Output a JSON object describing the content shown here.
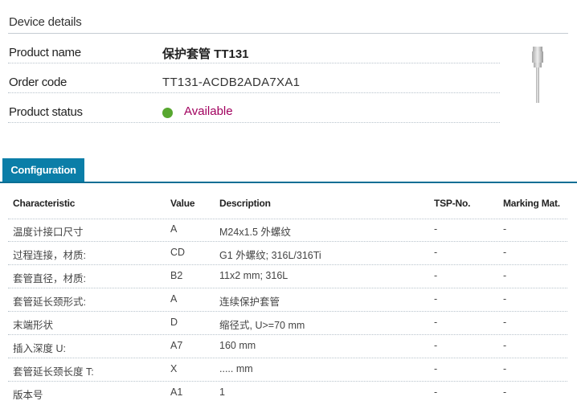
{
  "device_details": {
    "title": "Device details",
    "product_name_label": "Product name",
    "product_name": "保护套管 TT131",
    "order_code_label": "Order code",
    "order_code": "TT131-ACDB2ADA7XA1",
    "product_status_label": "Product status",
    "product_status": "Available",
    "status_color": "#57a72f",
    "status_text_color": "#a1005e"
  },
  "tabs": [
    {
      "label": "Configuration",
      "active": true,
      "color": "#0b7ea8"
    }
  ],
  "table": {
    "headers": [
      "Characteristic",
      "Value",
      "Description",
      "TSP-No.",
      "Marking Mat."
    ],
    "rows": [
      [
        "温度计接口尺寸",
        "A",
        "M24x1.5 外螺纹",
        "-",
        "-"
      ],
      [
        "过程连接，材质:",
        "CD",
        "G1 外螺纹; 316L/316Ti",
        "-",
        "-"
      ],
      [
        "套管直径，材质:",
        "B2",
        "11x2 mm; 316L",
        "-",
        "-"
      ],
      [
        "套管延长颈形式:",
        "A",
        "连续保护套管",
        "-",
        "-"
      ],
      [
        "末端形状",
        "D",
        "缩径式, U>=70 mm",
        "-",
        "-"
      ],
      [
        "插入深度 U:",
        "A7",
        "160 mm",
        "-",
        "-"
      ],
      [
        "套管延长颈长度 T:",
        "X",
        "..... mm",
        "-",
        "-"
      ],
      [
        "版本号",
        "A1",
        "1",
        "-",
        "-"
      ]
    ]
  }
}
